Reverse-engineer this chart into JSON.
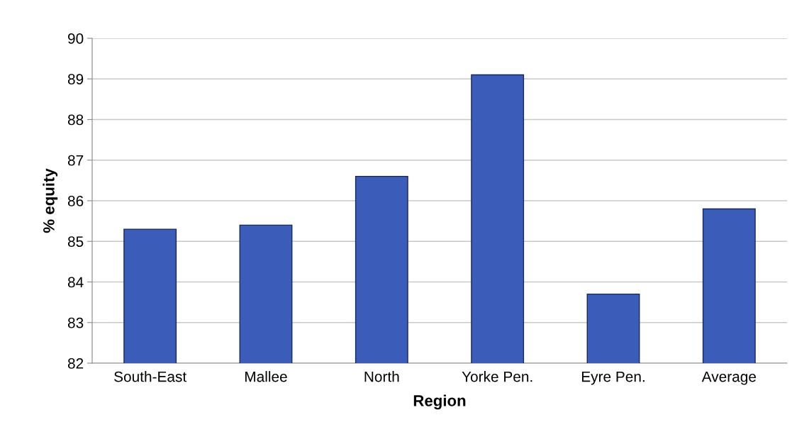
{
  "chart_data": {
    "type": "bar",
    "xlabel": "Region",
    "ylabel": "% equity",
    "categories": [
      "South-East",
      "Mallee",
      "North",
      "Yorke Pen.",
      "Eyre Pen.",
      "Average"
    ],
    "values": [
      85.3,
      85.4,
      86.6,
      89.1,
      83.7,
      85.8
    ],
    "color": "#3b5cb8",
    "ylim": [
      82,
      90
    ],
    "yticks": [
      82,
      83,
      84,
      85,
      86,
      87,
      88,
      89,
      90
    ],
    "grid": "y"
  }
}
